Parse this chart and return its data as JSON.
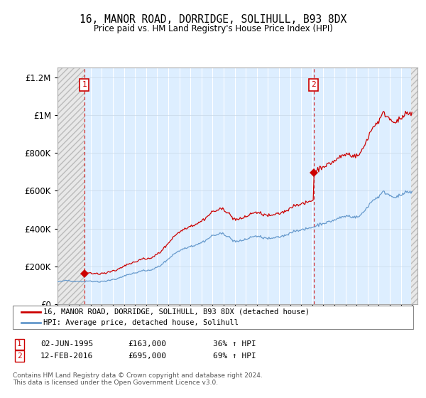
{
  "title": "16, MANOR ROAD, DORRIDGE, SOLIHULL, B93 8DX",
  "subtitle": "Price paid vs. HM Land Registry's House Price Index (HPI)",
  "legend_line1": "16, MANOR ROAD, DORRIDGE, SOLIHULL, B93 8DX (detached house)",
  "legend_line2": "HPI: Average price, detached house, Solihull",
  "table_row1": [
    "1",
    "02-JUN-1995",
    "£163,000",
    "36% ↑ HPI"
  ],
  "table_row2": [
    "2",
    "12-FEB-2016",
    "£695,000",
    "69% ↑ HPI"
  ],
  "footnote": "Contains HM Land Registry data © Crown copyright and database right 2024.\nThis data is licensed under the Open Government Licence v3.0.",
  "sale1_price": 163000,
  "sale2_price": 695000,
  "red_color": "#cc0000",
  "blue_color": "#6699cc",
  "bg_color": "#ddeeff",
  "ylim": [
    0,
    1250000
  ],
  "yticks": [
    0,
    200000,
    400000,
    600000,
    800000,
    1000000,
    1200000
  ],
  "sale1_year": 1995.417,
  "sale2_year": 2016.117
}
